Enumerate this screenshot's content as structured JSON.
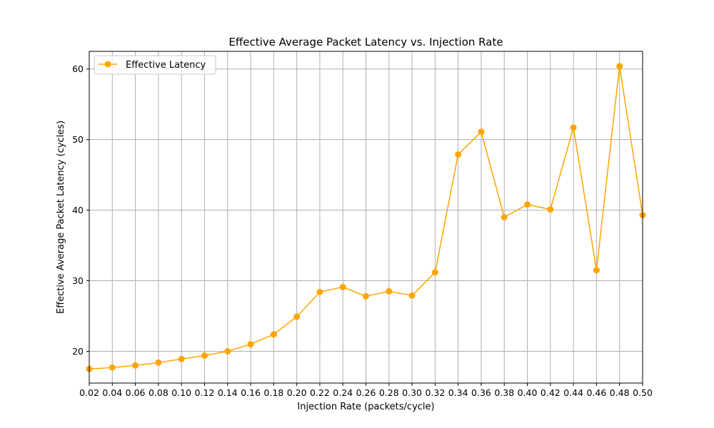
{
  "chart_data": {
    "type": "line",
    "title": "Effective Average Packet Latency vs. Injection Rate",
    "xlabel": "Injection Rate (packets/cycle)",
    "ylabel": "Effective Average Packet Latency (cycles)",
    "xlim": [
      0.02,
      0.5
    ],
    "ylim": [
      15.5,
      62.5
    ],
    "grid": true,
    "legend_position": "upper-left",
    "x_ticks": [
      "0.02",
      "0.04",
      "0.06",
      "0.08",
      "0.10",
      "0.12",
      "0.14",
      "0.16",
      "0.18",
      "0.20",
      "0.22",
      "0.24",
      "0.26",
      "0.28",
      "0.30",
      "0.32",
      "0.34",
      "0.36",
      "0.38",
      "0.40",
      "0.42",
      "0.44",
      "0.46",
      "0.48",
      "0.50"
    ],
    "y_ticks": [
      "20",
      "30",
      "40",
      "50",
      "60"
    ],
    "series": [
      {
        "name": "Effective Latency",
        "color": "#ffa500",
        "marker": "circle",
        "x": [
          0.02,
          0.04,
          0.06,
          0.08,
          0.1,
          0.12,
          0.14,
          0.16,
          0.18,
          0.2,
          0.22,
          0.24,
          0.26,
          0.28,
          0.3,
          0.32,
          0.34,
          0.36,
          0.38,
          0.4,
          0.42,
          0.44,
          0.46,
          0.48,
          0.5
        ],
        "y": [
          17.5,
          17.7,
          18.0,
          18.4,
          18.9,
          19.4,
          20.0,
          21.0,
          22.4,
          24.9,
          28.4,
          29.1,
          27.8,
          28.5,
          27.9,
          31.2,
          47.9,
          51.1,
          39.0,
          40.8,
          40.1,
          51.7,
          31.5,
          60.4,
          39.3
        ]
      }
    ]
  }
}
